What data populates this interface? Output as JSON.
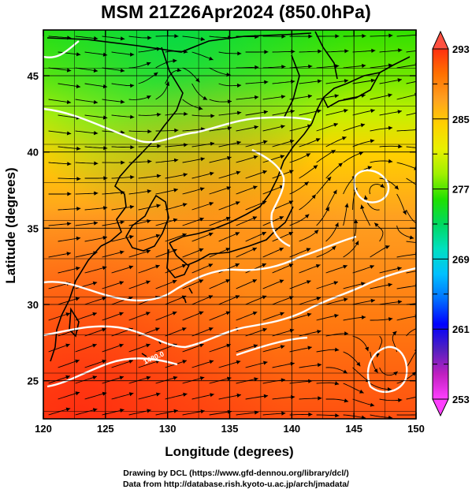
{
  "title": "MSM 21Z26Apr2024 (850.0hPa)",
  "x_axis": {
    "label": "Longitude (degrees)",
    "range": [
      120,
      150
    ],
    "ticks": [
      120,
      125,
      130,
      135,
      140,
      145,
      150
    ]
  },
  "y_axis": {
    "label": "Latitude  (degrees)",
    "range": [
      22.5,
      48
    ],
    "ticks": [
      25,
      30,
      35,
      40,
      45
    ]
  },
  "colorbar": {
    "min": 253,
    "max": 293,
    "labels": [
      293,
      285,
      277,
      269,
      261,
      253
    ],
    "gradient": [
      "#ff40ff",
      "#c020c0",
      "#5020c0",
      "#0000ff",
      "#0070ff",
      "#00c0ff",
      "#00e0c0",
      "#00d860",
      "#20e000",
      "#a0f000",
      "#e8f000",
      "#ffd000",
      "#ffa020",
      "#ff7000",
      "#ff3010"
    ]
  },
  "contour_label": "1480.0",
  "credits": {
    "line1": "Drawing by DCL (https://www.gfd-dennou.org/library/dcl/)",
    "line2": "Data from http://database.rish.kyoto-u.ac.jp/arch/jmadata/"
  }
}
